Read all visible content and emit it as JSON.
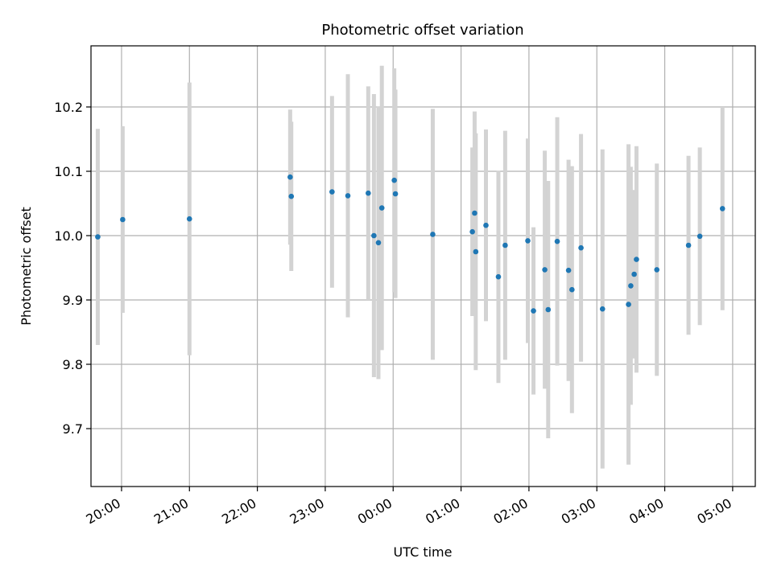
{
  "chart_data": {
    "type": "scatter",
    "title": "Photometric offset variation",
    "xlabel": "UTC time",
    "ylabel": "Photometric offset",
    "x_ticks": [
      "20:00",
      "21:00",
      "22:00",
      "23:00",
      "00:00",
      "01:00",
      "02:00",
      "03:00",
      "04:00",
      "05:00"
    ],
    "y_ticks": [
      "9.7",
      "9.8",
      "9.9",
      "10.0",
      "10.1",
      "10.2"
    ],
    "x_range": [
      "19:33",
      "05:20"
    ],
    "y_range": [
      9.61,
      10.295
    ],
    "grid": true,
    "colors": {
      "marker": "#1f77b4",
      "errorbar": "#d3d3d3",
      "grid": "#b0b0b0"
    },
    "points": [
      {
        "t": "19:39",
        "y": 9.998,
        "err": 0.168
      },
      {
        "t": "20:01",
        "y": 10.025,
        "err": 0.145
      },
      {
        "t": "21:00",
        "y": 10.026,
        "err": 0.212
      },
      {
        "t": "22:29",
        "y": 10.091,
        "err": 0.105
      },
      {
        "t": "22:30",
        "y": 10.061,
        "err": 0.116
      },
      {
        "t": "23:06",
        "y": 10.068,
        "err": 0.149
      },
      {
        "t": "23:20",
        "y": 10.062,
        "err": 0.189
      },
      {
        "t": "23:38",
        "y": 10.066,
        "err": 0.166
      },
      {
        "t": "23:43",
        "y": 10.0,
        "err": 0.22
      },
      {
        "t": "23:47",
        "y": 9.989,
        "err": 0.212
      },
      {
        "t": "23:50",
        "y": 10.043,
        "err": 0.221
      },
      {
        "t": "00:01",
        "y": 10.086,
        "err": 0.174
      },
      {
        "t": "00:02",
        "y": 10.065,
        "err": 0.162
      },
      {
        "t": "00:35",
        "y": 10.002,
        "err": 0.195
      },
      {
        "t": "01:10",
        "y": 10.006,
        "err": 0.131
      },
      {
        "t": "01:12",
        "y": 10.035,
        "err": 0.158
      },
      {
        "t": "01:13",
        "y": 9.975,
        "err": 0.184
      },
      {
        "t": "01:22",
        "y": 10.016,
        "err": 0.149
      },
      {
        "t": "01:33",
        "y": 9.936,
        "err": 0.165
      },
      {
        "t": "01:39",
        "y": 9.985,
        "err": 0.178
      },
      {
        "t": "01:59",
        "y": 9.992,
        "err": 0.159
      },
      {
        "t": "02:04",
        "y": 9.883,
        "err": 0.13
      },
      {
        "t": "02:14",
        "y": 9.947,
        "err": 0.185
      },
      {
        "t": "02:17",
        "y": 9.885,
        "err": 0.2
      },
      {
        "t": "02:25",
        "y": 9.991,
        "err": 0.193
      },
      {
        "t": "02:35",
        "y": 9.946,
        "err": 0.172
      },
      {
        "t": "02:38",
        "y": 9.916,
        "err": 0.192
      },
      {
        "t": "02:46",
        "y": 9.981,
        "err": 0.177
      },
      {
        "t": "03:05",
        "y": 9.886,
        "err": 0.248
      },
      {
        "t": "03:28",
        "y": 9.893,
        "err": 0.249
      },
      {
        "t": "03:30",
        "y": 9.922,
        "err": 0.185
      },
      {
        "t": "03:33",
        "y": 9.94,
        "err": 0.131
      },
      {
        "t": "03:35",
        "y": 9.963,
        "err": 0.176
      },
      {
        "t": "03:53",
        "y": 9.947,
        "err": 0.165
      },
      {
        "t": "04:21",
        "y": 9.985,
        "err": 0.139
      },
      {
        "t": "04:31",
        "y": 9.999,
        "err": 0.138
      },
      {
        "t": "04:51",
        "y": 10.042,
        "err": 0.158
      }
    ]
  }
}
